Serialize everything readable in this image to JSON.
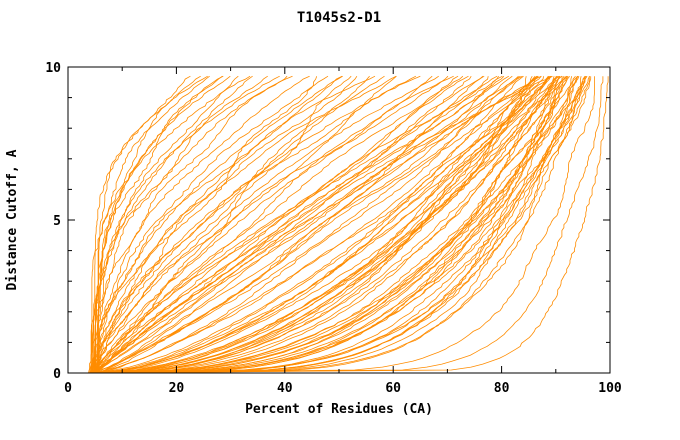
{
  "chart_data": {
    "type": "line",
    "title": "T1045s2-D1",
    "xlabel": "Percent of Residues (CA)",
    "ylabel": "Distance Cutoff, A",
    "xlim": [
      0,
      100
    ],
    "ylim": [
      0,
      10
    ],
    "x_ticks": [
      0,
      20,
      40,
      60,
      80,
      100
    ],
    "x_minor_step": 10,
    "y_ticks": [
      0,
      5,
      10
    ],
    "y_minor_step": 1,
    "grid": false,
    "legend": null,
    "line_color": "#ff8c00",
    "axis_color": "#000000",
    "background": "#ffffff",
    "y_top": 9.7,
    "curves_format": [
      "end_percent_at_cutoff_9.7",
      "shape_exponent",
      "start_percent_at_cutoff_0"
    ],
    "curves": [
      [
        100,
        0.08,
        4.5
      ],
      [
        99,
        0.11,
        5.0
      ],
      [
        97.5,
        0.14,
        4.2
      ],
      [
        96,
        0.2,
        4.8
      ],
      [
        95,
        0.25,
        5.2
      ],
      [
        94,
        0.22,
        4.0
      ],
      [
        93,
        0.3,
        5.5
      ],
      [
        92,
        0.28,
        4.6
      ],
      [
        96.5,
        0.33,
        5.0
      ],
      [
        95.5,
        0.19,
        4.4
      ],
      [
        94.5,
        0.36,
        5.8
      ],
      [
        93.5,
        0.24,
        4.1
      ],
      [
        92.5,
        0.38,
        5.3
      ],
      [
        91.5,
        0.21,
        4.7
      ],
      [
        91,
        0.34,
        5.1
      ],
      [
        90.5,
        0.27,
        4.3
      ],
      [
        90,
        0.4,
        5.6
      ],
      [
        96,
        0.31,
        4.9
      ],
      [
        95,
        0.23,
        5.4
      ],
      [
        94,
        0.37,
        4.2
      ],
      [
        93,
        0.26,
        5.7
      ],
      [
        92,
        0.35,
        4.5
      ],
      [
        91,
        0.29,
        5.0
      ],
      [
        90,
        0.32,
        4.8
      ],
      [
        96.5,
        0.26,
        5.2
      ],
      [
        95.5,
        0.39,
        4.4
      ],
      [
        94.5,
        0.21,
        5.5
      ],
      [
        93.5,
        0.33,
        4.6
      ],
      [
        92,
        0.45,
        5.1
      ],
      [
        91,
        0.52,
        4.3
      ],
      [
        90,
        0.48,
        5.6
      ],
      [
        89,
        0.6,
        4.7
      ],
      [
        88,
        0.44,
        5.2
      ],
      [
        87,
        0.57,
        4.4
      ],
      [
        86,
        0.5,
        5.8
      ],
      [
        85,
        0.63,
        4.6
      ],
      [
        92.5,
        0.55,
        5.0
      ],
      [
        91.5,
        0.42,
        4.9
      ],
      [
        90.5,
        0.58,
        5.3
      ],
      [
        89.5,
        0.47,
        4.2
      ],
      [
        88.5,
        0.62,
        5.5
      ],
      [
        87.5,
        0.46,
        4.8
      ],
      [
        86.5,
        0.59,
        5.1
      ],
      [
        85.5,
        0.43,
        4.5
      ],
      [
        89,
        0.53,
        5.7
      ],
      [
        88,
        0.49,
        4.3
      ],
      [
        87,
        0.64,
        5.4
      ],
      [
        86,
        0.41,
        4.7
      ],
      [
        90,
        0.75,
        5.0
      ],
      [
        88,
        0.85,
        4.5
      ],
      [
        86,
        0.95,
        5.5
      ],
      [
        84,
        1.05,
        4.8
      ],
      [
        82,
        1.15,
        5.2
      ],
      [
        80,
        0.8,
        4.4
      ],
      [
        78,
        0.9,
        5.6
      ],
      [
        76,
        1.0,
        4.6
      ],
      [
        74,
        1.1,
        5.1
      ],
      [
        72,
        1.2,
        4.9
      ],
      [
        89,
        1.25,
        5.3
      ],
      [
        87,
        0.72,
        4.3
      ],
      [
        85,
        0.88,
        5.7
      ],
      [
        83,
        0.98,
        4.7
      ],
      [
        81,
        1.08,
        5.4
      ],
      [
        79,
        1.18,
        4.2
      ],
      [
        77,
        0.78,
        5.0
      ],
      [
        75,
        0.92,
        4.6
      ],
      [
        73,
        1.02,
        5.2
      ],
      [
        88,
        1.12,
        4.8
      ],
      [
        84,
        0.76,
        5.5
      ],
      [
        80,
        1.22,
        4.4
      ],
      [
        70,
        1.3,
        4.6
      ],
      [
        68,
        1.5,
        5.2
      ],
      [
        66,
        1.1,
        4.4
      ],
      [
        64,
        1.7,
        5.6
      ],
      [
        62,
        1.2,
        4.8
      ],
      [
        60,
        1.9,
        5.0
      ],
      [
        58,
        1.4,
        4.3
      ],
      [
        56,
        2.1,
        5.4
      ],
      [
        54,
        1.6,
        4.7
      ],
      [
        52,
        1.0,
        5.1
      ],
      [
        50,
        1.8,
        4.5
      ],
      [
        48,
        2.0,
        5.3
      ],
      [
        46,
        1.35,
        4.9
      ],
      [
        45,
        2.2,
        5.5
      ],
      [
        71,
        1.45,
        4.2
      ],
      [
        65,
        1.65,
        5.0
      ],
      [
        55,
        1.25,
        4.6
      ],
      [
        49,
        1.55,
        5.2
      ],
      [
        22,
        3.5,
        4.0
      ],
      [
        24,
        3.0,
        4.5
      ],
      [
        26,
        3.8,
        5.0
      ],
      [
        28,
        2.6,
        4.2
      ],
      [
        30,
        3.2,
        4.8
      ],
      [
        32,
        2.4,
        4.4
      ],
      [
        34,
        3.6,
        5.2
      ],
      [
        36,
        2.2,
        4.6
      ],
      [
        38,
        2.9,
        5.4
      ],
      [
        40,
        2.0,
        4.3
      ],
      [
        42,
        2.7,
        4.9
      ],
      [
        25,
        4.0,
        4.1
      ],
      [
        33,
        2.3,
        4.7
      ],
      [
        29,
        3.4,
        5.3
      ]
    ]
  }
}
